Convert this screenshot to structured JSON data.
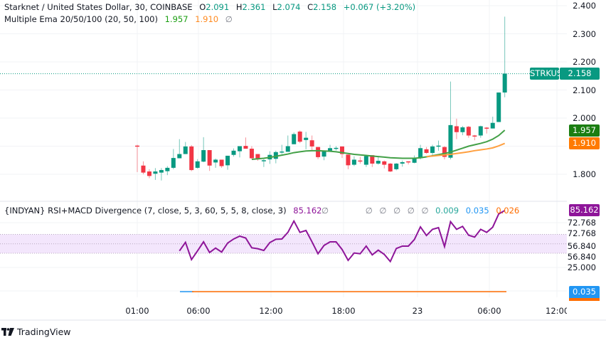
{
  "header": {
    "symbol_title": "Starknet / United States Dollar, 30, COINBASE",
    "open_label": "O",
    "open": "2.091",
    "high_label": "H",
    "high": "2.361",
    "low_label": "L",
    "low": "2.074",
    "close_label": "C",
    "close": "2.158",
    "change": "+0.067 (+3.20%)"
  },
  "ema_legend": {
    "title": "Multiple Ema 20/50/100 (20, 50, 100)",
    "ema20": "1.957",
    "ema50": "1.910",
    "ema100": "∅"
  },
  "rsi_legend": {
    "title": "{INDYAN} RSI+MACD Divergence (7, close, 5, 3, 60, 5, 5, 8, close, 3)",
    "rsi": "85.162",
    "empty1": "∅",
    "empty2": "∅",
    "empty3": "∅",
    "empty4": "∅",
    "empty5": "∅",
    "empty6": "∅",
    "macd": "0.009",
    "signal": "0.035",
    "hist": "0.026"
  },
  "price_axis": {
    "ticks": [
      "2.400",
      "2.300",
      "2.200",
      "2.100",
      "2.000",
      "1.800"
    ],
    "tick_values": [
      2.4,
      2.3,
      2.2,
      2.1,
      2.0,
      1.8
    ],
    "last_symbol": "STRKUSD",
    "last_price": "2.158",
    "ema20_tag": "1.957",
    "ema50_tag": "1.910"
  },
  "rsi_axis": {
    "rsi_tag": "85.162",
    "labels": [
      "72.768",
      "72.768",
      "56.840",
      "56.840",
      "25.000"
    ],
    "macd_tag": "0.035",
    "band": [
      40,
      60
    ]
  },
  "time_axis": [
    "01:00",
    "06:00",
    "12:00",
    "18:00",
    "23",
    "06:00",
    "12:00"
  ],
  "brand": {
    "name": "TradingView"
  },
  "colors": {
    "up": "#089981",
    "down": "#f23645",
    "ema20": "#43a047",
    "ema50": "#ffa040",
    "rsi": "#8e1599",
    "band": "#f3e6fc",
    "ema20_tag": "#1b7e12",
    "ema50_tag": "#ff7a00",
    "macd_blue": "#2196f3",
    "macd_orange": "#ff6d00"
  },
  "chart_data": {
    "type": "candlestick",
    "candles_ohlc": [
      [
        1.902,
        1.905,
        1.808,
        1.9
      ],
      [
        1.831,
        1.846,
        1.8,
        1.806
      ],
      [
        1.81,
        1.818,
        1.786,
        1.794
      ],
      [
        1.802,
        1.822,
        1.78,
        1.81
      ],
      [
        1.806,
        1.822,
        1.778,
        1.815
      ],
      [
        1.811,
        1.829,
        1.797,
        1.823
      ],
      [
        1.823,
        1.89,
        1.818,
        1.858
      ],
      [
        1.857,
        1.925,
        1.857,
        1.872
      ],
      [
        1.872,
        1.915,
        1.872,
        1.899
      ],
      [
        1.899,
        1.904,
        1.811,
        1.815
      ],
      [
        1.823,
        1.854,
        1.82,
        1.846
      ],
      [
        1.845,
        1.932,
        1.843,
        1.886
      ],
      [
        1.886,
        1.886,
        1.812,
        1.831
      ],
      [
        1.842,
        1.856,
        1.823,
        1.852
      ],
      [
        1.852,
        1.852,
        1.823,
        1.829
      ],
      [
        1.832,
        1.866,
        1.816,
        1.866
      ],
      [
        1.869,
        1.892,
        1.863,
        1.884
      ],
      [
        1.882,
        1.9,
        1.86,
        1.9
      ],
      [
        1.901,
        1.931,
        1.891,
        1.891
      ],
      [
        1.891,
        1.9,
        1.855,
        1.857
      ],
      [
        1.872,
        1.872,
        1.848,
        1.853
      ],
      [
        1.848,
        1.854,
        1.826,
        1.85
      ],
      [
        1.853,
        1.882,
        1.837,
        1.869
      ],
      [
        1.855,
        1.884,
        1.839,
        1.879
      ],
      [
        1.879,
        1.905,
        1.872,
        1.881
      ],
      [
        1.88,
        1.938,
        1.88,
        1.9
      ],
      [
        1.907,
        1.949,
        1.907,
        1.943
      ],
      [
        1.952,
        1.956,
        1.911,
        1.916
      ],
      [
        1.922,
        1.951,
        1.889,
        1.93
      ],
      [
        1.921,
        1.938,
        1.882,
        1.899
      ],
      [
        1.897,
        1.897,
        1.854,
        1.861
      ],
      [
        1.863,
        1.884,
        1.85,
        1.884
      ],
      [
        1.884,
        1.905,
        1.88,
        1.893
      ],
      [
        1.892,
        1.9,
        1.885,
        1.894
      ],
      [
        1.899,
        1.899,
        1.858,
        1.872
      ],
      [
        1.87,
        1.87,
        1.818,
        1.832
      ],
      [
        1.834,
        1.864,
        1.829,
        1.852
      ],
      [
        1.849,
        1.862,
        1.838,
        1.847
      ],
      [
        1.834,
        1.865,
        1.826,
        1.865
      ],
      [
        1.868,
        1.868,
        1.826,
        1.838
      ],
      [
        1.838,
        1.862,
        1.834,
        1.848
      ],
      [
        1.846,
        1.849,
        1.821,
        1.834
      ],
      [
        1.838,
        1.84,
        1.808,
        1.81
      ],
      [
        1.818,
        1.84,
        1.814,
        1.838
      ],
      [
        1.838,
        1.849,
        1.827,
        1.843
      ],
      [
        1.846,
        1.846,
        1.835,
        1.845
      ],
      [
        1.841,
        1.867,
        1.839,
        1.857
      ],
      [
        1.857,
        1.905,
        1.853,
        1.893
      ],
      [
        1.889,
        1.897,
        1.873,
        1.876
      ],
      [
        1.876,
        1.905,
        1.866,
        1.899
      ],
      [
        1.9,
        1.92,
        1.884,
        1.902
      ],
      [
        1.897,
        1.9,
        1.853,
        1.862
      ],
      [
        1.859,
        2.13,
        1.853,
        1.975
      ],
      [
        1.971,
        1.998,
        1.925,
        1.95
      ],
      [
        1.95,
        1.972,
        1.939,
        1.967
      ],
      [
        1.969,
        1.972,
        1.93,
        1.938
      ],
      [
        1.938,
        1.94,
        1.921,
        1.937
      ],
      [
        1.938,
        1.973,
        1.93,
        1.971
      ],
      [
        1.966,
        1.968,
        1.945,
        1.964
      ],
      [
        1.963,
        2.005,
        1.963,
        1.983
      ],
      [
        1.986,
        2.091,
        1.986,
        2.091
      ],
      [
        2.091,
        2.361,
        2.074,
        2.158
      ]
    ],
    "ema20_start_index": 19,
    "ema20": [
      1.853,
      1.855,
      1.857,
      1.86,
      1.864,
      1.868,
      1.872,
      1.877,
      1.88,
      1.883,
      1.884,
      1.884,
      1.883,
      1.882,
      1.88,
      1.877,
      1.874,
      1.871,
      1.869,
      1.867,
      1.865,
      1.863,
      1.861,
      1.859,
      1.858,
      1.857,
      1.857,
      1.857,
      1.859,
      1.862,
      1.866,
      1.87,
      1.874,
      1.879,
      1.886,
      1.893,
      1.9,
      1.905,
      1.91,
      1.916,
      1.925,
      1.938,
      1.957
    ],
    "ema50_start_index": 48,
    "ema50": [
      1.863,
      1.865,
      1.867,
      1.869,
      1.871,
      1.874,
      1.877,
      1.88,
      1.884,
      1.887,
      1.89,
      1.894,
      1.901,
      1.91
    ],
    "rsi_start_index": 7,
    "rsi": [
      42.5,
      51.6,
      33.3,
      42.5,
      52.1,
      40.8,
      45.5,
      41.3,
      50.8,
      55.1,
      58.1,
      56.1,
      45.8,
      44.8,
      43.0,
      51.3,
      54.8,
      55.1,
      62.1,
      74.1,
      62.1,
      64.1,
      52.1,
      39.5,
      48.3,
      52.1,
      52.1,
      44.0,
      32.5,
      40.3,
      39.5,
      47.6,
      38.3,
      43.3,
      38.8,
      31.3,
      45.1,
      47.6,
      47.6,
      54.6,
      67.9,
      58.8,
      65.3,
      67.1,
      47.1,
      73.4,
      65.3,
      68.4,
      59.1,
      57.1,
      65.3,
      62.1,
      67.6,
      81.6,
      85.2
    ]
  }
}
